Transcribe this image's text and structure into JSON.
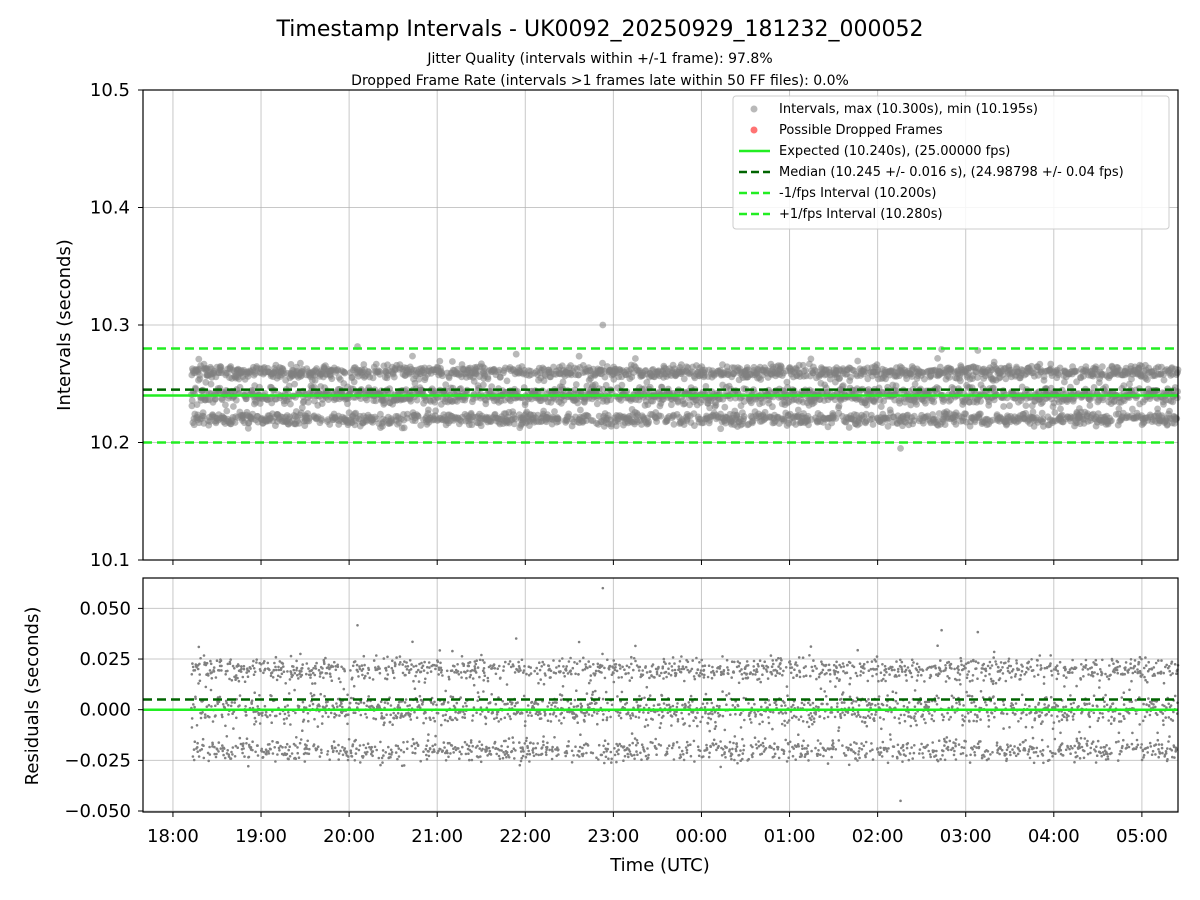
{
  "figure": {
    "title": "Timestamp Intervals - UK0092_20250929_181232_000052",
    "subtitle_jitter": "Jitter Quality (intervals within +/-1 frame): 97.8%",
    "subtitle_dropped": "Dropped Frame Rate (intervals >1 frames late within 50 FF files): 0.0%"
  },
  "colors": {
    "points": "#808080",
    "dropped": "#ff0000",
    "expected": "#22ee22",
    "median": "#006400",
    "fps_band": "#22ee22",
    "grid": "#b0b0b0",
    "axes": "#000000"
  },
  "chart_data": [
    {
      "type": "scatter",
      "panel": "intervals",
      "xlabel": "",
      "ylabel": "Intervals (seconds)",
      "ylim": [
        10.1,
        10.5
      ],
      "yticks": [
        10.1,
        10.2,
        10.3,
        10.4,
        10.5
      ],
      "ytick_labels": [
        "10.1",
        "10.2",
        "10.3",
        "10.4",
        "10.5"
      ],
      "xlim_hours": [
        17.66,
        29.41
      ],
      "x_range_hours": [
        18.21,
        29.41
      ],
      "n_points": 3600,
      "expected": 10.24,
      "median": 10.245,
      "lower_band": 10.2,
      "upper_band": 10.28,
      "max_interval": 10.3,
      "min_interval": 10.195,
      "clusters": [
        10.22,
        10.24,
        10.26
      ],
      "legend_position": "upper right",
      "legend": {
        "intervals": "Intervals, max (10.300s), min (10.195s)",
        "dropped": "Possible Dropped Frames",
        "expected": "Expected (10.240s), (25.00000 fps)",
        "median": "Median (10.245 +/- 0.016 s), (24.98798 +/- 0.04 fps)",
        "minus_fps": "-1/fps Interval (10.200s)",
        "plus_fps": "+1/fps Interval (10.280s)"
      }
    },
    {
      "type": "scatter",
      "panel": "residuals",
      "xlabel": "Time (UTC)",
      "ylabel": "Residuals (seconds)",
      "ylim": [
        -0.0505,
        0.065
      ],
      "yticks": [
        -0.05,
        -0.025,
        0.0,
        0.025,
        0.05
      ],
      "ytick_labels": [
        "−0.050",
        "−0.025",
        "0.000",
        "0.025",
        "0.050"
      ],
      "expected_line": 0.0,
      "median_line": 0.005,
      "xticks_hours": [
        18,
        19,
        20,
        21,
        22,
        23,
        24,
        25,
        26,
        27,
        28,
        29
      ],
      "xtick_labels": [
        "18:00",
        "19:00",
        "20:00",
        "21:00",
        "22:00",
        "23:00",
        "00:00",
        "01:00",
        "02:00",
        "03:00",
        "04:00",
        "05:00"
      ]
    }
  ]
}
